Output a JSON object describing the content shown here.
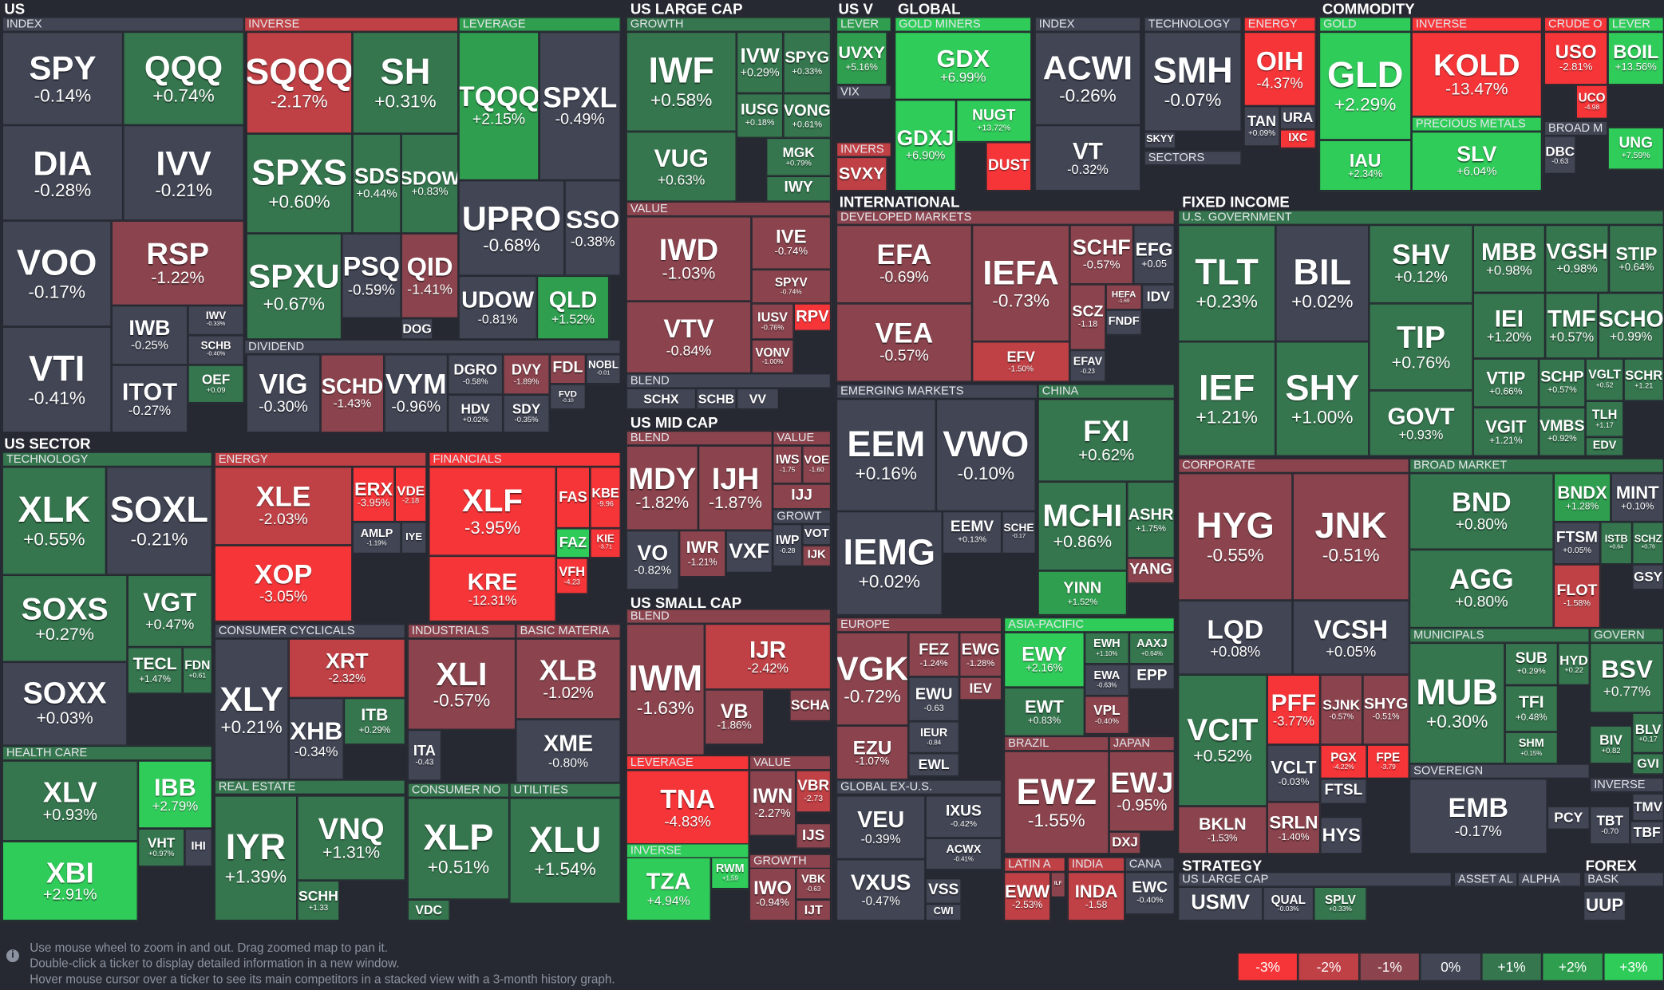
{
  "sections": [
    "US",
    "US LARGE CAP",
    "US V",
    "GLOBAL",
    "COMMODITY",
    "INTERNATIONAL",
    "FIXED INCOME",
    "US SECTOR",
    "US MID CAP",
    "US SMALL CAP",
    "STRATEGY",
    "FOREX"
  ],
  "groups": [
    "INDEX",
    "INVERSE",
    "LEVERAGE",
    "DIVIDEND",
    "GROWTH",
    "VALUE",
    "BLEND",
    "LEVER",
    "VIX",
    "INVERS",
    "GOLD MINERS",
    "INDEX",
    "TECHNOLOGY",
    "ENERGY",
    "SECTORS",
    "GOLD",
    "INVERSE",
    "PRECIOUS METALS",
    "CRUDE O",
    "BROAD M",
    "LEVER",
    "DEVELOPED MARKETS",
    "EMERGING MARKETS",
    "CHINA",
    "U.S. GOVERNMENT",
    "CORPORATE",
    "BROAD MARKET",
    "MUNICIPALS",
    "GOVERN",
    "SOVEREIGN",
    "INVERSE",
    "TECHNOLOGY",
    "HEALTH CARE",
    "ENERGY",
    "FINANCIALS",
    "CONSUMER CYCLICALS",
    "INDUSTRIALS",
    "BASIC MATERIA",
    "REAL ESTATE",
    "CONSUMER NO",
    "UTILITIES",
    "BLEND",
    "VALUE",
    "GROWT",
    "BLEND",
    "LEVERAGE",
    "VALUE",
    "INVERSE",
    "GROWTH",
    "EUROPE",
    "ASIA-PACIFIC",
    "BRAZIL",
    "JAPAN",
    "GLOBAL EX-U.S.",
    "LATIN A",
    "INDIA",
    "CANA",
    "US LARGE CAP",
    "ASSET AL",
    "ALPHA",
    "BASK"
  ],
  "tiles": [
    {
      "ticker": "SPY",
      "change": "-0.14%"
    },
    {
      "ticker": "QQQ",
      "change": "+0.74%"
    },
    {
      "ticker": "DIA",
      "change": "-0.28%"
    },
    {
      "ticker": "IVV",
      "change": "-0.21%"
    },
    {
      "ticker": "VOO",
      "change": "-0.17%"
    },
    {
      "ticker": "RSP",
      "change": "-1.22%"
    },
    {
      "ticker": "IWB",
      "change": "-0.25%"
    },
    {
      "ticker": "IWV",
      "change": "-0.33%"
    },
    {
      "ticker": "SCHB",
      "change": "-0.40%"
    },
    {
      "ticker": "VTI",
      "change": "-0.41%"
    },
    {
      "ticker": "ITOT",
      "change": "-0.27%"
    },
    {
      "ticker": "OEF",
      "change": "+0.09"
    },
    {
      "ticker": "SQQQ",
      "change": "-2.17%"
    },
    {
      "ticker": "SH",
      "change": "+0.31%"
    },
    {
      "ticker": "SPXS",
      "change": "+0.60%"
    },
    {
      "ticker": "SDS",
      "change": "+0.44%"
    },
    {
      "ticker": "SDOW",
      "change": "+0.83%"
    },
    {
      "ticker": "SPXU",
      "change": "+0.67%"
    },
    {
      "ticker": "PSQ",
      "change": "-0.59%"
    },
    {
      "ticker": "QID",
      "change": "-1.41%"
    },
    {
      "ticker": "DOG"
    },
    {
      "ticker": "TQQQ",
      "change": "+2.15%"
    },
    {
      "ticker": "SPXL",
      "change": "-0.49%"
    },
    {
      "ticker": "UPRO",
      "change": "-0.68%"
    },
    {
      "ticker": "SSO",
      "change": "-0.38%"
    },
    {
      "ticker": "UDOW",
      "change": "-0.81%"
    },
    {
      "ticker": "QLD",
      "change": "+1.52%"
    },
    {
      "ticker": "VIG",
      "change": "-0.30%"
    },
    {
      "ticker": "SCHD",
      "change": "-1.43%"
    },
    {
      "ticker": "VYM",
      "change": "-0.96%"
    },
    {
      "ticker": "DGRO",
      "change": "-0.58%"
    },
    {
      "ticker": "DVY",
      "change": "-1.89%"
    },
    {
      "ticker": "FDL"
    },
    {
      "ticker": "NOBL",
      "change": "-0.01"
    },
    {
      "ticker": "HDV",
      "change": "+0.02%"
    },
    {
      "ticker": "SDY",
      "change": "-0.35%"
    },
    {
      "ticker": "FVD",
      "change": "-0.10"
    },
    {
      "ticker": "IWF",
      "change": "+0.58%"
    },
    {
      "ticker": "IVW",
      "change": "+0.29%"
    },
    {
      "ticker": "SPYG",
      "change": "+0.33%"
    },
    {
      "ticker": "IUSG",
      "change": "+0.18%"
    },
    {
      "ticker": "VONG",
      "change": "+0.61%"
    },
    {
      "ticker": "VUG",
      "change": "+0.63%"
    },
    {
      "ticker": "MGK",
      "change": "+0.79%"
    },
    {
      "ticker": "IWY"
    },
    {
      "ticker": "IWD",
      "change": "-1.03%"
    },
    {
      "ticker": "IVE",
      "change": "-0.74%"
    },
    {
      "ticker": "SPYV",
      "change": "-0.74%"
    },
    {
      "ticker": "VTV",
      "change": "-0.84%"
    },
    {
      "ticker": "IUSV",
      "change": "-0.76%"
    },
    {
      "ticker": "RPV"
    },
    {
      "ticker": "VONV",
      "change": "-1.00%"
    },
    {
      "ticker": "SCHX"
    },
    {
      "ticker": "SCHB"
    },
    {
      "ticker": "VV"
    },
    {
      "ticker": "UVXY",
      "change": "+5.16%"
    },
    {
      "ticker": "SVXY"
    },
    {
      "ticker": "GDX",
      "change": "+6.99%"
    },
    {
      "ticker": "GDXJ",
      "change": "+6.90%"
    },
    {
      "ticker": "NUGT",
      "change": "+13.72%"
    },
    {
      "ticker": "DUST"
    },
    {
      "ticker": "ACWI",
      "change": "-0.26%"
    },
    {
      "ticker": "VT",
      "change": "-0.32%"
    },
    {
      "ticker": "SMH",
      "change": "-0.07%"
    },
    {
      "ticker": "SKYY"
    },
    {
      "ticker": "OIH",
      "change": "-4.37%"
    },
    {
      "ticker": "TAN",
      "change": "+0.09%"
    },
    {
      "ticker": "URA"
    },
    {
      "ticker": "IXC"
    },
    {
      "ticker": "GLD",
      "change": "+2.29%"
    },
    {
      "ticker": "IAU",
      "change": "+2.34%"
    },
    {
      "ticker": "KOLD",
      "change": "-13.47%"
    },
    {
      "ticker": "SLV",
      "change": "+6.04%"
    },
    {
      "ticker": "USO",
      "change": "-2.81%"
    },
    {
      "ticker": "UCO",
      "change": "-4.98"
    },
    {
      "ticker": "DBC",
      "change": "-0.63"
    },
    {
      "ticker": "BOIL",
      "change": "+13.56%"
    },
    {
      "ticker": "UNG",
      "change": "+7.59%"
    },
    {
      "ticker": "EFA",
      "change": "-0.69%"
    },
    {
      "ticker": "VEA",
      "change": "-0.57%"
    },
    {
      "ticker": "IEFA",
      "change": "-0.73%"
    },
    {
      "ticker": "EFV",
      "change": "-1.50%"
    },
    {
      "ticker": "SCHF",
      "change": "-0.57%"
    },
    {
      "ticker": "EFG",
      "change": "+0.05"
    },
    {
      "ticker": "HEFA",
      "change": "-1.69"
    },
    {
      "ticker": "IDV"
    },
    {
      "ticker": "SCZ",
      "change": "-1.18"
    },
    {
      "ticker": "FNDF"
    },
    {
      "ticker": "EFAV",
      "change": "-0.23"
    },
    {
      "ticker": "EEM",
      "change": "+0.16%"
    },
    {
      "ticker": "VWO",
      "change": "-0.10%"
    },
    {
      "ticker": "IEMG",
      "change": "+0.02%"
    },
    {
      "ticker": "EEMV",
      "change": "+0.13%"
    },
    {
      "ticker": "SCHE",
      "change": "-0.17"
    },
    {
      "ticker": "FXI",
      "change": "+0.62%"
    },
    {
      "ticker": "MCHI",
      "change": "+0.86%"
    },
    {
      "ticker": "ASHR",
      "change": "+1.75%"
    },
    {
      "ticker": "YANG"
    },
    {
      "ticker": "YINN",
      "change": "+1.52%"
    },
    {
      "ticker": "TLT",
      "change": "+0.23%"
    },
    {
      "ticker": "BIL",
      "change": "+0.02%"
    },
    {
      "ticker": "SHV",
      "change": "+0.12%"
    },
    {
      "ticker": "TIP",
      "change": "+0.76%"
    },
    {
      "ticker": "GOVT",
      "change": "+0.93%"
    },
    {
      "ticker": "IEF",
      "change": "+1.21%"
    },
    {
      "ticker": "SHY",
      "change": "+1.00%"
    },
    {
      "ticker": "MBB",
      "change": "+0.98%"
    },
    {
      "ticker": "VGSH",
      "change": "+0.98%"
    },
    {
      "ticker": "STIP",
      "change": "+0.64%"
    },
    {
      "ticker": "IEI",
      "change": "+1.20%"
    },
    {
      "ticker": "TMF",
      "change": "+0.57%"
    },
    {
      "ticker": "SCHO",
      "change": "+0.99%"
    },
    {
      "ticker": "VTIP",
      "change": "+0.66%"
    },
    {
      "ticker": "SCHP",
      "change": "+0.57%"
    },
    {
      "ticker": "VGLT",
      "change": "+0.52"
    },
    {
      "ticker": "SCHR",
      "change": "+1.21"
    },
    {
      "ticker": "TLH",
      "change": "+1.17"
    },
    {
      "ticker": "VGIT",
      "change": "+1.21%"
    },
    {
      "ticker": "VMBS",
      "change": "+0.92%"
    },
    {
      "ticker": "EDV"
    },
    {
      "ticker": "HYG",
      "change": "-0.55%"
    },
    {
      "ticker": "JNK",
      "change": "-0.51%"
    },
    {
      "ticker": "LQD",
      "change": "+0.08%"
    },
    {
      "ticker": "VCSH",
      "change": "+0.05%"
    },
    {
      "ticker": "VCIT",
      "change": "+0.52%"
    },
    {
      "ticker": "PFF",
      "change": "-3.77%"
    },
    {
      "ticker": "SJNK",
      "change": "-0.57%"
    },
    {
      "ticker": "SHYG",
      "change": "-0.51%"
    },
    {
      "ticker": "PGX",
      "change": "-4.22%"
    },
    {
      "ticker": "FPE",
      "change": "-3.79"
    },
    {
      "ticker": "VCLT",
      "change": "-0.03%"
    },
    {
      "ticker": "FTSL"
    },
    {
      "ticker": "SRLN",
      "change": "-1.40%"
    },
    {
      "ticker": "HYS"
    },
    {
      "ticker": "BKLN",
      "change": "-1.53%"
    },
    {
      "ticker": "BND",
      "change": "+0.80%"
    },
    {
      "ticker": "AGG",
      "change": "+0.80%"
    },
    {
      "ticker": "BNDX",
      "change": "+1.28%"
    },
    {
      "ticker": "MINT",
      "change": "+0.10%"
    },
    {
      "ticker": "FTSM",
      "change": "+0.05%"
    },
    {
      "ticker": "ISTB",
      "change": "+0.64"
    },
    {
      "ticker": "SCHZ",
      "change": "+0.76"
    },
    {
      "ticker": "GSY"
    },
    {
      "ticker": "FLOT",
      "change": "-1.58%"
    },
    {
      "ticker": "MUB",
      "change": "+0.30%"
    },
    {
      "ticker": "SUB",
      "change": "+0.29%"
    },
    {
      "ticker": "HYD",
      "change": "+0.22"
    },
    {
      "ticker": "TFI",
      "change": "+0.48%"
    },
    {
      "ticker": "SHM",
      "change": "+0.15%"
    },
    {
      "ticker": "BSV",
      "change": "+0.77%"
    },
    {
      "ticker": "BLV",
      "change": "+0.17"
    },
    {
      "ticker": "BIV",
      "change": "+0.82"
    },
    {
      "ticker": "GVI"
    },
    {
      "ticker": "EMB",
      "change": "-0.17%"
    },
    {
      "ticker": "PCY"
    },
    {
      "ticker": "TMV"
    },
    {
      "ticker": "TBT",
      "change": "-0.70"
    },
    {
      "ticker": "TBF"
    },
    {
      "ticker": "XLK",
      "change": "+0.55%"
    },
    {
      "ticker": "SOXL",
      "change": "-0.21%"
    },
    {
      "ticker": "SOXS",
      "change": "+0.27%"
    },
    {
      "ticker": "VGT",
      "change": "+0.47%"
    },
    {
      "ticker": "SOXX",
      "change": "+0.03%"
    },
    {
      "ticker": "TECL",
      "change": "+1.47%"
    },
    {
      "ticker": "FDN",
      "change": "+0.61"
    },
    {
      "ticker": "XLV",
      "change": "+0.93%"
    },
    {
      "ticker": "XBI",
      "change": "+2.91%"
    },
    {
      "ticker": "IBB",
      "change": "+2.79%"
    },
    {
      "ticker": "VHT",
      "change": "+0.97%"
    },
    {
      "ticker": "IHI"
    },
    {
      "ticker": "XLE",
      "change": "-2.03%"
    },
    {
      "ticker": "XOP",
      "change": "-3.05%"
    },
    {
      "ticker": "ERX",
      "change": "-3.95%"
    },
    {
      "ticker": "VDE",
      "change": "-2.18"
    },
    {
      "ticker": "AMLP",
      "change": "-1.19%"
    },
    {
      "ticker": "IYE"
    },
    {
      "ticker": "XLF",
      "change": "-3.95%"
    },
    {
      "ticker": "KRE",
      "change": "-12.31%"
    },
    {
      "ticker": "FAS"
    },
    {
      "ticker": "KBE",
      "change": "-9.96"
    },
    {
      "ticker": "FAZ"
    },
    {
      "ticker": "KIE",
      "change": "-3.71"
    },
    {
      "ticker": "VFH",
      "change": "-4.23"
    },
    {
      "ticker": "XLY",
      "change": "+0.21%"
    },
    {
      "ticker": "XRT",
      "change": "-2.32%"
    },
    {
      "ticker": "XHB",
      "change": "-0.34%"
    },
    {
      "ticker": "ITB",
      "change": "+0.29%"
    },
    {
      "ticker": "XLI",
      "change": "-0.57%"
    },
    {
      "ticker": "ITA",
      "change": "-0.43"
    },
    {
      "ticker": "XLB",
      "change": "-1.02%"
    },
    {
      "ticker": "XME",
      "change": "-0.80%"
    },
    {
      "ticker": "IYR",
      "change": "+1.39%"
    },
    {
      "ticker": "VNQ",
      "change": "+1.31%"
    },
    {
      "ticker": "SCHH",
      "change": "+1.33"
    },
    {
      "ticker": "XLP",
      "change": "+0.51%"
    },
    {
      "ticker": "VDC"
    },
    {
      "ticker": "XLU",
      "change": "+1.54%"
    },
    {
      "ticker": "MDY",
      "change": "-1.82%"
    },
    {
      "ticker": "IJH",
      "change": "-1.87%"
    },
    {
      "ticker": "VO",
      "change": "-0.82%"
    },
    {
      "ticker": "IWR",
      "change": "-1.21%"
    },
    {
      "ticker": "VXF"
    },
    {
      "ticker": "IWS",
      "change": "-1.75"
    },
    {
      "ticker": "VOE",
      "change": "-1.60"
    },
    {
      "ticker": "IJJ"
    },
    {
      "ticker": "IWP",
      "change": "-0.28"
    },
    {
      "ticker": "VOT"
    },
    {
      "ticker": "IJK"
    },
    {
      "ticker": "IWM",
      "change": "-1.63%"
    },
    {
      "ticker": "IJR",
      "change": "-2.42%"
    },
    {
      "ticker": "VB",
      "change": "-1.86%"
    },
    {
      "ticker": "SCHA"
    },
    {
      "ticker": "TNA",
      "change": "-4.83%"
    },
    {
      "ticker": "IWN",
      "change": "-2.27%"
    },
    {
      "ticker": "VBR",
      "change": "-2.73"
    },
    {
      "ticker": "IJS"
    },
    {
      "ticker": "TZA",
      "change": "+4.94%"
    },
    {
      "ticker": "RWM",
      "change": "+1.59"
    },
    {
      "ticker": "IWO",
      "change": "-0.94%"
    },
    {
      "ticker": "VBK",
      "change": "-0.63"
    },
    {
      "ticker": "IJT"
    },
    {
      "ticker": "VGK",
      "change": "-0.72%"
    },
    {
      "ticker": "FEZ",
      "change": "-1.24%"
    },
    {
      "ticker": "EWG",
      "change": "-1.28%"
    },
    {
      "ticker": "EWU",
      "change": "-0.63"
    },
    {
      "ticker": "IEV"
    },
    {
      "ticker": "EZU",
      "change": "-1.07%"
    },
    {
      "ticker": "IEUR",
      "change": "-0.84"
    },
    {
      "ticker": "EWL"
    },
    {
      "ticker": "EWY",
      "change": "+2.16%"
    },
    {
      "ticker": "EWH",
      "change": "+1.10%"
    },
    {
      "ticker": "AAXJ",
      "change": "+0.64%"
    },
    {
      "ticker": "EWT",
      "change": "+0.83%"
    },
    {
      "ticker": "EWA",
      "change": "-0.63%"
    },
    {
      "ticker": "EPP"
    },
    {
      "ticker": "VPL",
      "change": "-0.40%"
    },
    {
      "ticker": "EWZ",
      "change": "-1.55%"
    },
    {
      "ticker": "EWJ",
      "change": "-0.95%"
    },
    {
      "ticker": "DXJ"
    },
    {
      "ticker": "VEU",
      "change": "-0.39%"
    },
    {
      "ticker": "IXUS",
      "change": "-0.42%"
    },
    {
      "ticker": "ACWX",
      "change": "-0.41%"
    },
    {
      "ticker": "VXUS",
      "change": "-0.47%"
    },
    {
      "ticker": "VSS"
    },
    {
      "ticker": "CWI"
    },
    {
      "ticker": "EWW",
      "change": "-2.53%"
    },
    {
      "ticker": "ILF"
    },
    {
      "ticker": "INDA",
      "change": "-1.58"
    },
    {
      "ticker": "EWC",
      "change": "-0.40%"
    },
    {
      "ticker": "USMV"
    },
    {
      "ticker": "QUAL",
      "change": "-0.03%"
    },
    {
      "ticker": "SPLV",
      "change": "+0.33%"
    },
    {
      "ticker": "UUP"
    }
  ],
  "help": [
    "Use mouse wheel to zoom in and out. Drag zoomed map to pan it.",
    "Double-click a ticker to display detailed information in a new window.",
    "Hover mouse cursor over a ticker to see its main competitors in a stacked view with a 3-month history graph."
  ],
  "legend": [
    "-3%",
    "-2%",
    "-1%",
    "0%",
    "+1%",
    "+2%",
    "+3%"
  ]
}
